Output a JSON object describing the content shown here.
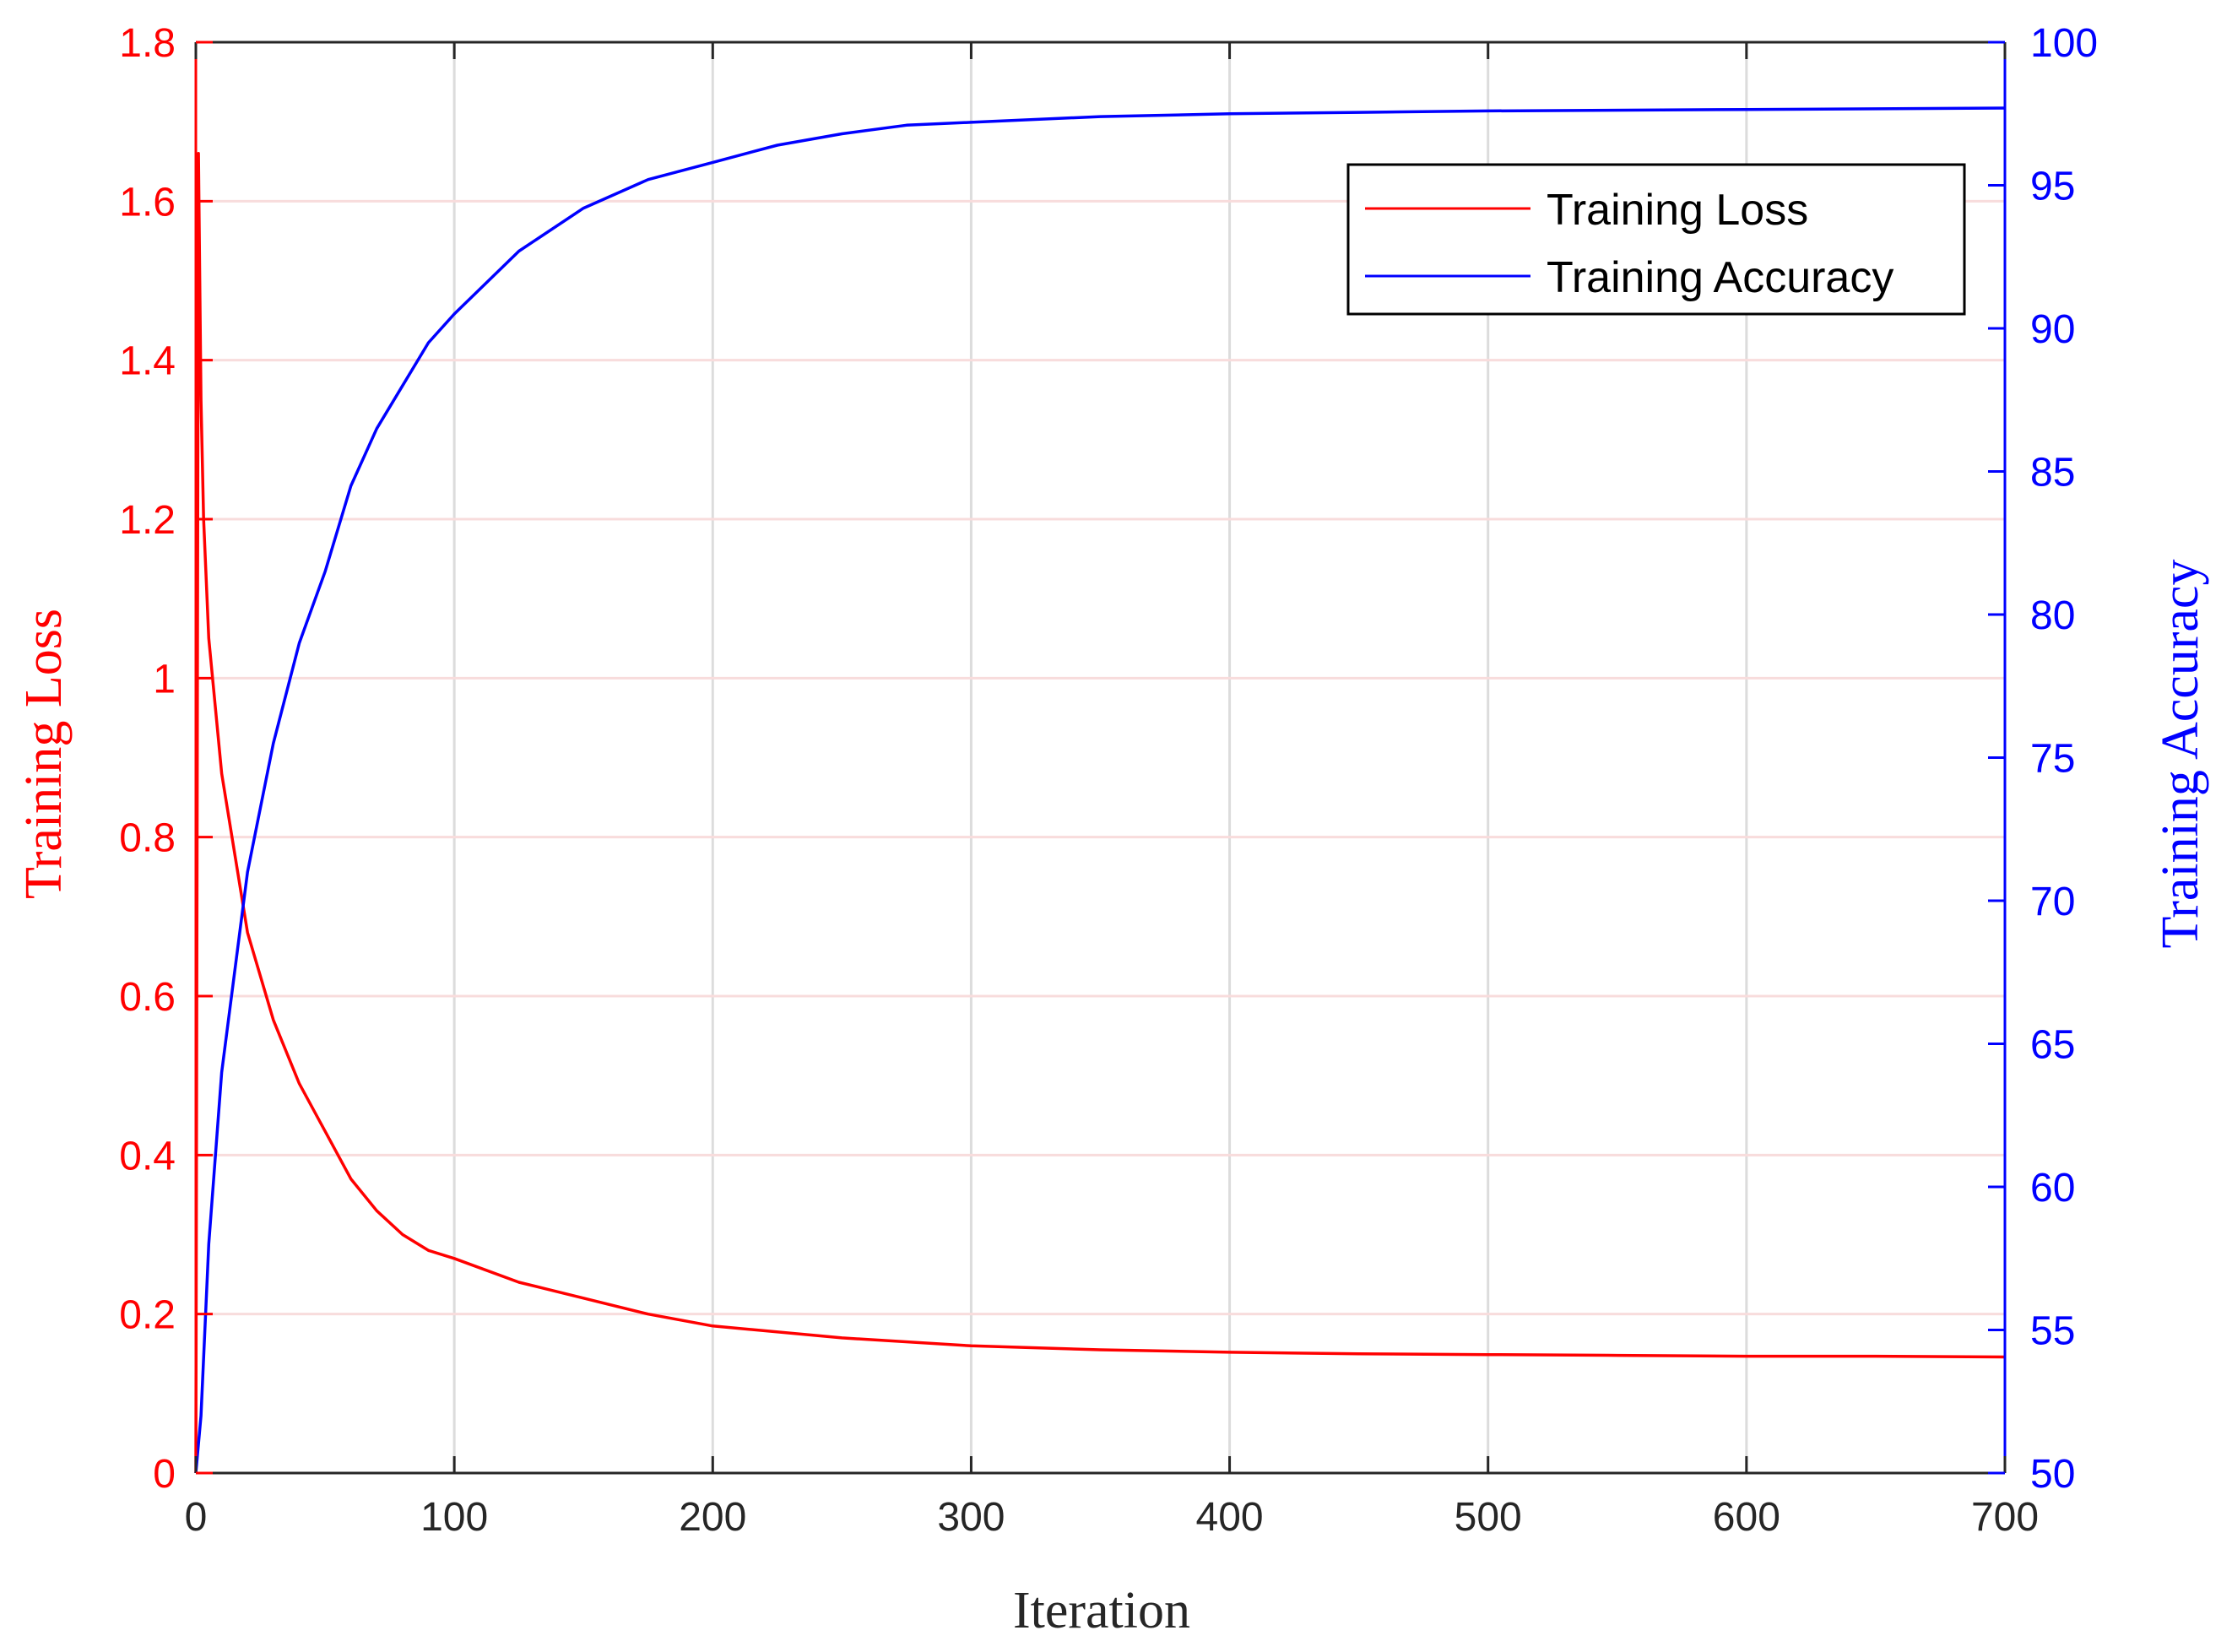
{
  "chart_data": {
    "type": "line",
    "title": "",
    "xlabel": "Iteration",
    "ylabel_left": "Training Loss",
    "ylabel_right": "Training Accuracy",
    "xlim": [
      0,
      700
    ],
    "ylim_left": [
      0,
      1.8
    ],
    "ylim_right": [
      50,
      100
    ],
    "xticks": [
      "0",
      "100",
      "200",
      "300",
      "400",
      "500",
      "600",
      "700"
    ],
    "yticks_left": [
      "0",
      "0.2",
      "0.4",
      "0.6",
      "0.8",
      "1",
      "1.2",
      "1.4",
      "1.6",
      "1.8"
    ],
    "yticks_right": [
      "50",
      "55",
      "60",
      "65",
      "70",
      "75",
      "80",
      "85",
      "90",
      "95",
      "100"
    ],
    "grid": true,
    "legend_position": "top-right",
    "colors": {
      "loss": "#ff0000",
      "accuracy": "#0000ff",
      "grid": "#dcdcdc"
    },
    "series": [
      {
        "name": "Training Loss",
        "axis": "left",
        "x": [
          0,
          1,
          2,
          3,
          5,
          10,
          20,
          30,
          40,
          50,
          60,
          70,
          80,
          90,
          100,
          125,
          150,
          175,
          200,
          250,
          300,
          350,
          400,
          450,
          500,
          550,
          600,
          650,
          700
        ],
        "y": [
          0.0,
          1.66,
          1.35,
          1.2,
          1.05,
          0.88,
          0.68,
          0.57,
          0.49,
          0.43,
          0.37,
          0.33,
          0.3,
          0.28,
          0.27,
          0.24,
          0.22,
          0.2,
          0.185,
          0.17,
          0.16,
          0.155,
          0.152,
          0.15,
          0.149,
          0.148,
          0.147,
          0.147,
          0.146
        ]
      },
      {
        "name": "Training Accuracy",
        "axis": "right",
        "x": [
          0,
          2,
          5,
          10,
          20,
          30,
          40,
          50,
          60,
          70,
          80,
          90,
          100,
          125,
          150,
          175,
          200,
          225,
          250,
          275,
          300,
          350,
          400,
          450,
          500,
          600,
          700
        ],
        "y": [
          50.0,
          52.0,
          58.0,
          64.0,
          71.0,
          75.5,
          79.0,
          81.5,
          84.5,
          86.5,
          88.0,
          89.5,
          90.5,
          92.7,
          94.2,
          95.2,
          95.8,
          96.4,
          96.8,
          97.1,
          97.2,
          97.4,
          97.5,
          97.55,
          97.6,
          97.65,
          97.7
        ]
      }
    ]
  }
}
